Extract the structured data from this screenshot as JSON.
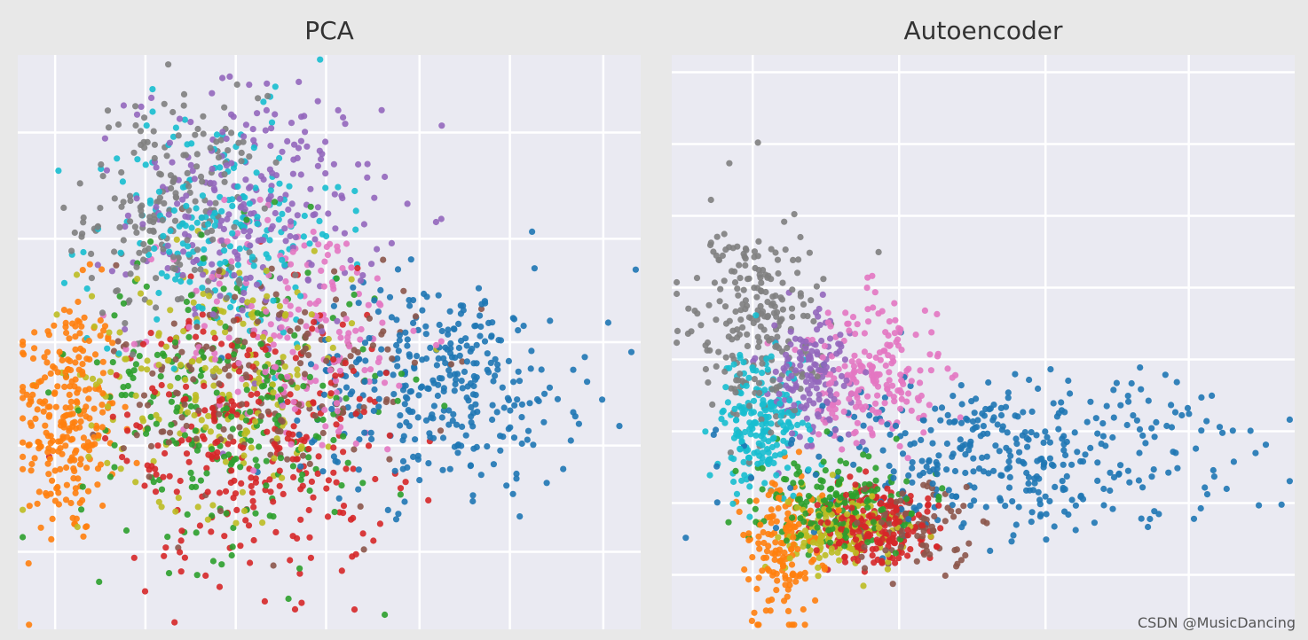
{
  "watermark": "CSDN @MusicDancing",
  "colors": {
    "background": "#e8e8e8",
    "plot_background": "#eaeaf2",
    "grid": "#ffffff",
    "title": "#333333"
  },
  "palette": {
    "blue": "#1f77b4",
    "orange": "#ff7f0e",
    "green": "#2ca02c",
    "red": "#d62728",
    "purple": "#9467bd",
    "brown": "#8c564b",
    "pink": "#e377c2",
    "gray": "#7f7f7f",
    "olive": "#bcbd22",
    "cyan": "#17becf"
  },
  "chart_data": [
    {
      "type": "scatter",
      "title": "PCA",
      "xlabel": "",
      "ylabel": "",
      "xlim": [
        0,
        100
      ],
      "ylim": [
        0,
        100
      ],
      "grid": true,
      "grid_x": [
        6,
        20.5,
        35,
        49.5,
        64.5,
        79,
        94
      ],
      "grid_y": [
        13.5,
        32,
        50,
        68,
        86.5
      ],
      "tick_labels_visible": false,
      "legend": "none",
      "clusters": [
        {
          "color": "orange",
          "count": 260,
          "cx": 8,
          "cy": 37,
          "sx": 4,
          "sy": 11
        },
        {
          "color": "gray",
          "count": 200,
          "cx": 25,
          "cy": 73,
          "sx": 7,
          "sy": 10
        },
        {
          "color": "purple",
          "count": 240,
          "cx": 38,
          "cy": 73,
          "sx": 10,
          "sy": 11
        },
        {
          "color": "cyan",
          "count": 200,
          "cx": 32,
          "cy": 70,
          "sx": 10,
          "sy": 10
        },
        {
          "color": "pink",
          "count": 180,
          "cx": 45,
          "cy": 52,
          "sx": 10,
          "sy": 11
        },
        {
          "color": "olive",
          "count": 200,
          "cx": 32,
          "cy": 44,
          "sx": 11,
          "sy": 11
        },
        {
          "color": "green",
          "count": 260,
          "cx": 34,
          "cy": 40,
          "sx": 12,
          "sy": 13
        },
        {
          "color": "red",
          "count": 280,
          "cx": 38,
          "cy": 33,
          "sx": 11,
          "sy": 12
        },
        {
          "color": "brown",
          "count": 180,
          "cx": 40,
          "cy": 43,
          "sx": 12,
          "sy": 11
        },
        {
          "color": "blue",
          "count": 340,
          "cx": 68,
          "cy": 43,
          "sx": 11,
          "sy": 9
        }
      ]
    },
    {
      "type": "scatter",
      "title": "Autoencoder",
      "xlabel": "",
      "ylabel": "",
      "xlim": [
        0,
        100
      ],
      "ylim": [
        0,
        100
      ],
      "grid": true,
      "grid_x": [
        13,
        36.5,
        60,
        83
      ],
      "grid_y": [
        9.5,
        22,
        34.5,
        47,
        59.5,
        72,
        84.5,
        97
      ],
      "tick_labels_visible": false,
      "legend": "none",
      "clusters": [
        {
          "color": "gray",
          "count": 230,
          "cx": 13,
          "cy": 53,
          "sx": 5,
          "sy": 9
        },
        {
          "color": "cyan",
          "count": 200,
          "cx": 14,
          "cy": 36,
          "sx": 3.5,
          "sy": 6
        },
        {
          "color": "purple",
          "count": 150,
          "cx": 22,
          "cy": 44,
          "sx": 4,
          "sy": 6
        },
        {
          "color": "pink",
          "count": 200,
          "cx": 32,
          "cy": 44,
          "sx": 6,
          "sy": 7
        },
        {
          "color": "green",
          "count": 170,
          "cx": 27,
          "cy": 22,
          "sx": 6,
          "sy": 4
        },
        {
          "color": "orange",
          "count": 150,
          "cx": 18,
          "cy": 14,
          "sx": 3,
          "sy": 7
        },
        {
          "color": "olive",
          "count": 150,
          "cx": 27,
          "cy": 17,
          "sx": 5,
          "sy": 3
        },
        {
          "color": "red",
          "count": 210,
          "cx": 33,
          "cy": 18,
          "sx": 5,
          "sy": 3.5
        },
        {
          "color": "brown",
          "count": 90,
          "cx": 38,
          "cy": 18,
          "sx": 6,
          "sy": 4
        },
        {
          "color": "blue",
          "count": 380,
          "cx": 55,
          "cy": 30,
          "sx": 18,
          "sy": 7
        }
      ]
    }
  ]
}
